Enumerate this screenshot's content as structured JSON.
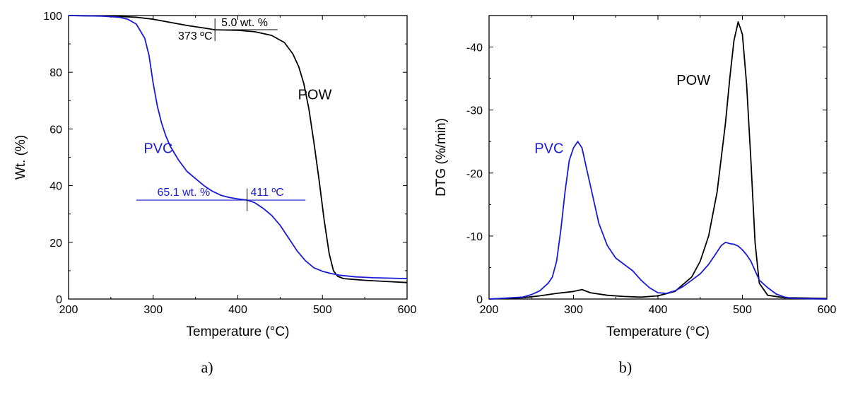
{
  "colors": {
    "POW": "#000000",
    "PVC": "#1a1ad6"
  },
  "chart_data": [
    {
      "type": "line",
      "panel_label": "a)",
      "xlabel": "Temperature (°C)",
      "ylabel": "Wt. (%)",
      "xlim": [
        200,
        600
      ],
      "ylim": [
        0,
        100
      ],
      "xticks": [
        200,
        300,
        400,
        500,
        600
      ],
      "yticks": [
        0,
        20,
        40,
        60,
        80,
        100
      ],
      "grid": false,
      "series": [
        {
          "name": "POW",
          "color": "#000000",
          "x": [
            200,
            250,
            280,
            300,
            320,
            340,
            360,
            373,
            400,
            420,
            440,
            455,
            465,
            472,
            478,
            484,
            490,
            496,
            502,
            508,
            513,
            518,
            525,
            550,
            575,
            600
          ],
          "y": [
            100,
            99.8,
            99.4,
            98.7,
            97.6,
            96.5,
            95.6,
            95.0,
            94.8,
            94.3,
            93.0,
            90.5,
            86.5,
            82.0,
            76.0,
            67.0,
            55.0,
            42.0,
            28.0,
            16.0,
            10.0,
            8.0,
            7.2,
            6.6,
            6.2,
            5.8
          ]
        },
        {
          "name": "PVC",
          "color": "#1a1ad6",
          "x": [
            200,
            240,
            260,
            270,
            280,
            290,
            295,
            300,
            305,
            310,
            315,
            320,
            330,
            340,
            350,
            360,
            370,
            380,
            390,
            400,
            411,
            420,
            430,
            440,
            450,
            460,
            470,
            480,
            490,
            500,
            510,
            520,
            540,
            560,
            600
          ],
          "y": [
            100,
            99.8,
            99.4,
            98.7,
            97.0,
            92.0,
            86.0,
            76.0,
            68.0,
            62.0,
            57.5,
            54.0,
            49.0,
            45.0,
            42.5,
            40.0,
            38.0,
            36.6,
            35.8,
            35.3,
            34.9,
            34.0,
            32.0,
            29.5,
            26.0,
            21.5,
            17.0,
            13.5,
            11.0,
            9.8,
            9.0,
            8.4,
            7.8,
            7.5,
            7.2
          ]
        }
      ],
      "annotations": [
        {
          "text": "373 ºC",
          "color": "#000000"
        },
        {
          "text": "5.0 wt. %",
          "color": "#000000"
        },
        {
          "text": "65.1 wt. %",
          "color": "#1a1ad6"
        },
        {
          "text": "411 ºC",
          "color": "#1a1ad6"
        }
      ],
      "series_labels": [
        {
          "text": "POW",
          "color": "#000000"
        },
        {
          "text": "PVC",
          "color": "#1a1ad6"
        }
      ]
    },
    {
      "type": "line",
      "panel_label": "b)",
      "xlabel": "Temperature (°C)",
      "ylabel": "DTG (%/min)",
      "xlim": [
        200,
        600
      ],
      "ylim": [
        0,
        -45
      ],
      "yaxis_inverted": true,
      "xticks": [
        200,
        300,
        400,
        500,
        600
      ],
      "yticks": [
        0,
        -10,
        -20,
        -30,
        -40
      ],
      "grid": false,
      "series": [
        {
          "name": "POW",
          "color": "#000000",
          "x": [
            200,
            240,
            260,
            280,
            300,
            310,
            320,
            340,
            360,
            380,
            400,
            420,
            440,
            450,
            460,
            470,
            480,
            485,
            490,
            495,
            500,
            505,
            510,
            515,
            520,
            530,
            550,
            600
          ],
          "y": [
            0,
            -0.2,
            -0.5,
            -0.9,
            -1.2,
            -1.5,
            -1.0,
            -0.6,
            -0.4,
            -0.3,
            -0.5,
            -1.2,
            -3.5,
            -6.0,
            -10.0,
            -17.0,
            -28.0,
            -35.0,
            -41.0,
            -44.0,
            -42.0,
            -34.0,
            -22.0,
            -9.0,
            -2.5,
            -0.6,
            -0.2,
            -0.1
          ]
        },
        {
          "name": "PVC",
          "color": "#1a1ad6",
          "x": [
            200,
            240,
            250,
            260,
            270,
            275,
            280,
            285,
            290,
            295,
            300,
            305,
            310,
            315,
            320,
            325,
            330,
            340,
            350,
            360,
            370,
            380,
            390,
            400,
            410,
            420,
            430,
            440,
            450,
            460,
            465,
            470,
            475,
            480,
            485,
            490,
            495,
            500,
            505,
            510,
            515,
            520,
            530,
            540,
            550,
            560,
            600
          ],
          "y": [
            0,
            -0.3,
            -0.7,
            -1.3,
            -2.5,
            -3.5,
            -6.0,
            -11.0,
            -17.0,
            -22.0,
            -24.0,
            -25.0,
            -24.0,
            -21.0,
            -18.0,
            -15.0,
            -12.0,
            -8.5,
            -6.5,
            -5.5,
            -4.5,
            -3.0,
            -1.8,
            -1.0,
            -0.9,
            -1.3,
            -2.0,
            -3.0,
            -4.0,
            -5.5,
            -6.5,
            -7.5,
            -8.5,
            -9.0,
            -8.8,
            -8.7,
            -8.4,
            -7.8,
            -7.0,
            -6.0,
            -4.5,
            -3.0,
            -1.8,
            -0.8,
            -0.3,
            -0.1,
            0
          ]
        }
      ],
      "series_labels": [
        {
          "text": "POW",
          "color": "#000000"
        },
        {
          "text": "PVC",
          "color": "#1a1ad6"
        }
      ]
    }
  ]
}
